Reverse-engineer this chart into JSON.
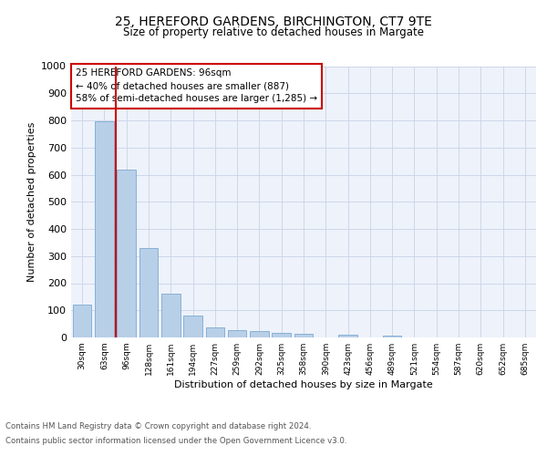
{
  "title1": "25, HEREFORD GARDENS, BIRCHINGTON, CT7 9TE",
  "title2": "Size of property relative to detached houses in Margate",
  "xlabel": "Distribution of detached houses by size in Margate",
  "ylabel": "Number of detached properties",
  "categories": [
    "30sqm",
    "63sqm",
    "96sqm",
    "128sqm",
    "161sqm",
    "194sqm",
    "227sqm",
    "259sqm",
    "292sqm",
    "325sqm",
    "358sqm",
    "390sqm",
    "423sqm",
    "456sqm",
    "489sqm",
    "521sqm",
    "554sqm",
    "587sqm",
    "620sqm",
    "652sqm",
    "685sqm"
  ],
  "values": [
    120,
    795,
    620,
    330,
    160,
    80,
    38,
    27,
    25,
    18,
    15,
    0,
    10,
    0,
    8,
    0,
    0,
    0,
    0,
    0,
    0
  ],
  "bar_color": "#b8cfe8",
  "bar_edge_color": "#7aaad0",
  "vline_x": 1.5,
  "vline_color": "#cc0000",
  "annotation_text": "25 HEREFORD GARDENS: 96sqm\n← 40% of detached houses are smaller (887)\n58% of semi-detached houses are larger (1,285) →",
  "annotation_box_color": "#ffffff",
  "annotation_box_edge_color": "#cc0000",
  "ylim": [
    0,
    1000
  ],
  "yticks": [
    0,
    100,
    200,
    300,
    400,
    500,
    600,
    700,
    800,
    900,
    1000
  ],
  "footer1": "Contains HM Land Registry data © Crown copyright and database right 2024.",
  "footer2": "Contains public sector information licensed under the Open Government Licence v3.0.",
  "bg_color": "#eef2fa",
  "grid_color": "#c8d4e8"
}
